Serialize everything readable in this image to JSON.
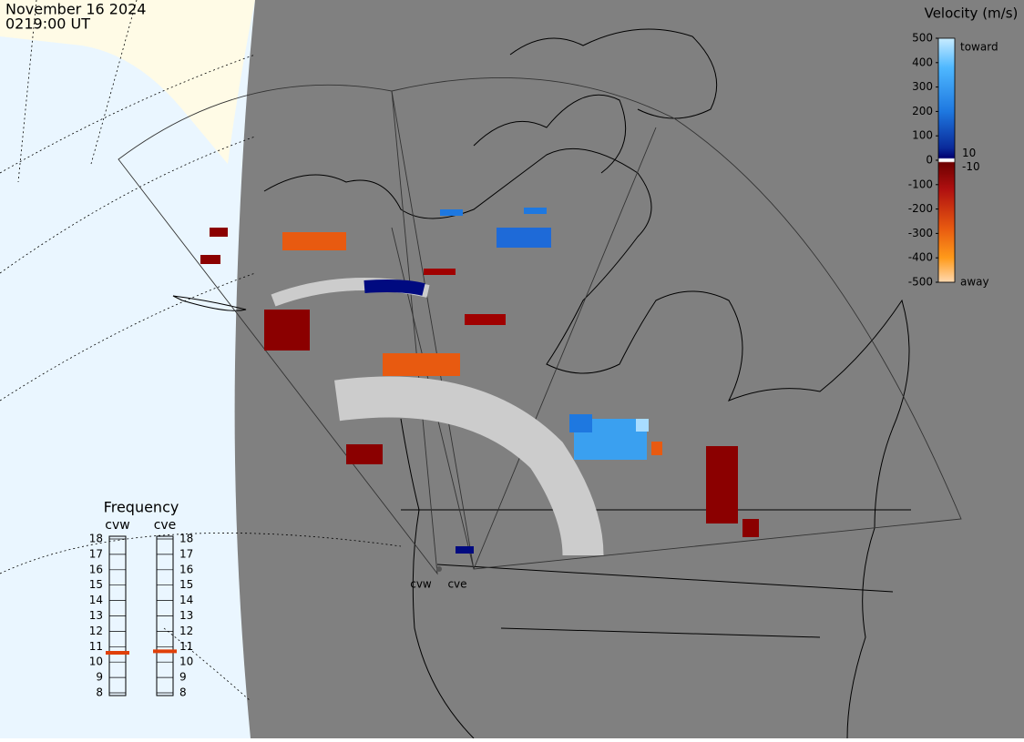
{
  "header": {
    "date": "November 16 2024",
    "time": "0219:00 UT"
  },
  "velocity_scale": {
    "title": "Velocity (m/s)",
    "lim": [
      -500,
      500
    ],
    "ticks": [
      500,
      400,
      300,
      200,
      100,
      0,
      -100,
      -200,
      -300,
      -400,
      -500
    ],
    "toward": "toward",
    "away": "away",
    "gap_ticks": [
      10,
      -10
    ]
  },
  "frequency": {
    "title": "Frequency",
    "lim": [
      8,
      18
    ],
    "ticks": [
      18,
      17,
      16,
      15,
      14,
      13,
      12,
      11,
      10,
      9,
      8
    ],
    "radars": [
      {
        "name": "cvw",
        "value": 10.6
      },
      {
        "name": "cve",
        "value": 10.7
      }
    ]
  },
  "map": {
    "radar_labels": [
      "cvw",
      "cve"
    ]
  }
}
